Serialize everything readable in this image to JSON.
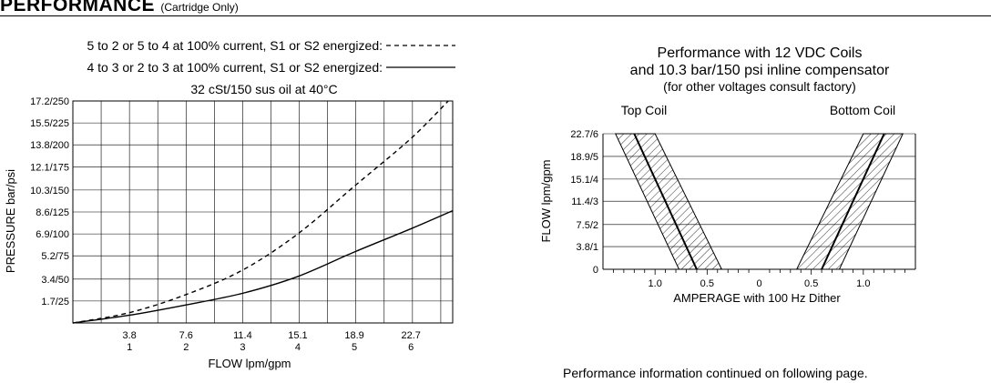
{
  "header": {
    "title": "PERFORMANCE",
    "subtitle": "(Cartridge Only)"
  },
  "footer": {
    "text": "Performance information continued on following page."
  },
  "chart_data": [
    {
      "type": "line",
      "legend": [
        {
          "label": "5 to 2 or 5 to 4 at 100% current, S1 or S2 energized:",
          "style": "dashed"
        },
        {
          "label": "4 to 3 or 2 to 3 at 100% current, S1 or S2 energized:",
          "style": "solid"
        }
      ],
      "title": "32 cSt/150 sus oil at 40°C",
      "xlabel": "FLOW lpm/gpm",
      "ylabel": "PRESSURE bar/psi",
      "x_ticks": [
        {
          "value": 3.8,
          "label": "3.8",
          "label2": "1"
        },
        {
          "value": 7.6,
          "label": "7.6",
          "label2": "2"
        },
        {
          "value": 11.4,
          "label": "11.4",
          "label2": "3"
        },
        {
          "value": 15.1,
          "label": "15.1",
          "label2": "4"
        },
        {
          "value": 18.9,
          "label": "18.9",
          "label2": "5"
        },
        {
          "value": 22.7,
          "label": "22.7",
          "label2": "6"
        }
      ],
      "y_ticks": [
        {
          "value": 1.7,
          "label": "1.7/25"
        },
        {
          "value": 3.4,
          "label": "3.4/50"
        },
        {
          "value": 5.2,
          "label": "5.2/75"
        },
        {
          "value": 6.9,
          "label": "6.9/100"
        },
        {
          "value": 8.6,
          "label": "8.6/125"
        },
        {
          "value": 10.3,
          "label": "10.3/150"
        },
        {
          "value": 12.1,
          "label": "12.1/175"
        },
        {
          "value": 13.8,
          "label": "13.8/200"
        },
        {
          "value": 15.5,
          "label": "15.5/225"
        },
        {
          "value": 17.2,
          "label": "17.2/250"
        }
      ],
      "xlim": [
        0,
        25.5
      ],
      "ylim": [
        0,
        17.2
      ],
      "grid": true,
      "series": [
        {
          "name": "5 to 2 or 5 to 4",
          "style": "dashed",
          "x": [
            0,
            3.8,
            7.6,
            11.4,
            15.1,
            18.9,
            22.7,
            25.2
          ],
          "y": [
            0,
            0.8,
            2.2,
            4.1,
            6.9,
            10.6,
            14.3,
            17.2
          ]
        },
        {
          "name": "4 to 3 or 2 to 3",
          "style": "solid",
          "x": [
            0,
            3.8,
            7.6,
            11.4,
            15.1,
            18.9,
            22.7,
            25.5
          ],
          "y": [
            0,
            0.6,
            1.4,
            2.3,
            3.6,
            5.5,
            7.3,
            8.7
          ]
        }
      ]
    },
    {
      "type": "line",
      "title": "Performance with 12 VDC Coils",
      "subtitle": "and 10.3 bar/150 psi inline compensator",
      "note": "(for other voltages consult factory)",
      "left_label": "Top Coil",
      "right_label": "Bottom Coil",
      "xlabel": "AMPERAGE with 100 Hz Dither",
      "ylabel": "FLOW lpm/gpm",
      "x_ticks": [
        {
          "value": -1.0,
          "label": "1.0"
        },
        {
          "value": -0.5,
          "label": "0.5"
        },
        {
          "value": 0,
          "label": "0"
        },
        {
          "value": 0.5,
          "label": "0.5"
        },
        {
          "value": 1.0,
          "label": "1.0"
        }
      ],
      "y_ticks": [
        {
          "value": 0,
          "label": "0"
        },
        {
          "value": 3.8,
          "label": "3.8/1"
        },
        {
          "value": 7.5,
          "label": "7.5/2"
        },
        {
          "value": 11.4,
          "label": "11.4/3"
        },
        {
          "value": 15.1,
          "label": "15.1/4"
        },
        {
          "value": 18.9,
          "label": "18.9/5"
        },
        {
          "value": 22.7,
          "label": "22.7/6"
        }
      ],
      "xlim": [
        -1.5,
        1.5
      ],
      "ylim": [
        0,
        22.7
      ],
      "grid": true,
      "bands": [
        {
          "name": "Top Coil",
          "lower": {
            "x": [
              -1.38,
              -0.77
            ],
            "y": [
              22.7,
              0
            ]
          },
          "upper": {
            "x": [
              -1.0,
              -0.36
            ],
            "y": [
              22.7,
              0
            ]
          }
        },
        {
          "name": "Bottom Coil",
          "lower": {
            "x": [
              1.38,
              0.77
            ],
            "y": [
              22.7,
              0
            ]
          },
          "upper": {
            "x": [
              1.0,
              0.36
            ],
            "y": [
              22.7,
              0
            ]
          }
        }
      ],
      "series": [
        {
          "name": "Top Coil",
          "x": [
            -1.2,
            -0.6
          ],
          "y": [
            22.7,
            0
          ]
        },
        {
          "name": "Bottom Coil",
          "x": [
            1.2,
            0.6
          ],
          "y": [
            22.7,
            0
          ]
        }
      ]
    }
  ]
}
